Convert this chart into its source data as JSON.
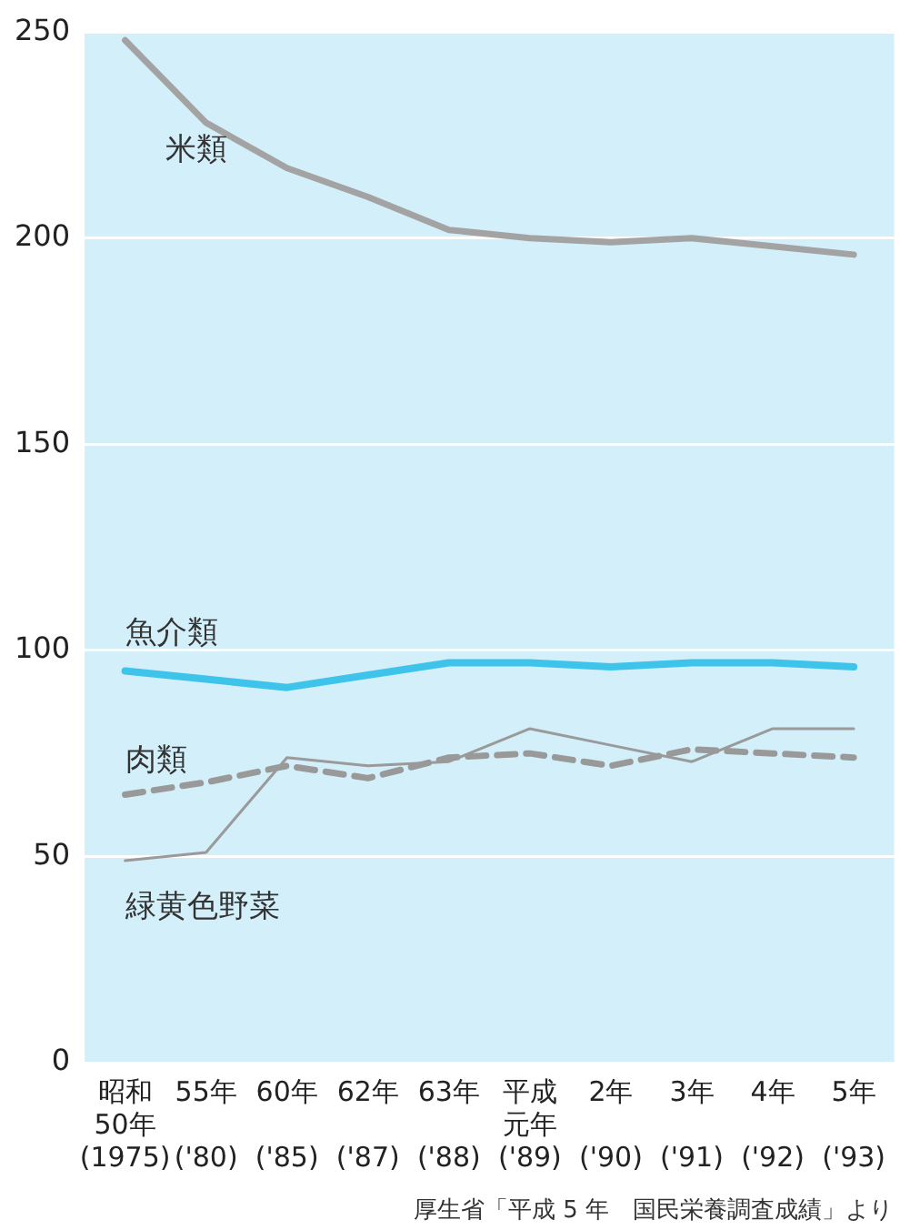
{
  "chart_data": {
    "type": "line",
    "categories": [
      "昭和50年(1975)",
      "55年('80)",
      "60年('85)",
      "62年('87)",
      "63年('88)",
      "平成元年('89)",
      "2年('90)",
      "3年('91)",
      "4年('92)",
      "5年('93)"
    ],
    "series": [
      {
        "name": "米類",
        "color": "#a3a3a3",
        "values": [
          248,
          228,
          217,
          210,
          202,
          200,
          199,
          200,
          198,
          196
        ]
      },
      {
        "name": "魚介類",
        "color": "#3ec4ea",
        "values": [
          95,
          93,
          91,
          94,
          97,
          97,
          96,
          97,
          97,
          96
        ]
      },
      {
        "name": "肉類",
        "color": "#999999",
        "line_style": "dashed",
        "values": [
          65,
          68,
          72,
          69,
          74,
          75,
          72,
          76,
          75,
          74
        ]
      },
      {
        "name": "緑黄色野菜",
        "color": "#9a9a9a",
        "values": [
          49,
          51,
          74,
          72,
          73,
          81,
          77,
          73,
          81,
          81
        ]
      }
    ],
    "ylim": [
      0,
      250
    ],
    "yticks": [
      0,
      50,
      100,
      150,
      200,
      250
    ],
    "grid": "y",
    "legend": false,
    "marker": "none",
    "annotations": [
      "厚生省「平成 5 年　国民栄養調査成績」より"
    ]
  }
}
